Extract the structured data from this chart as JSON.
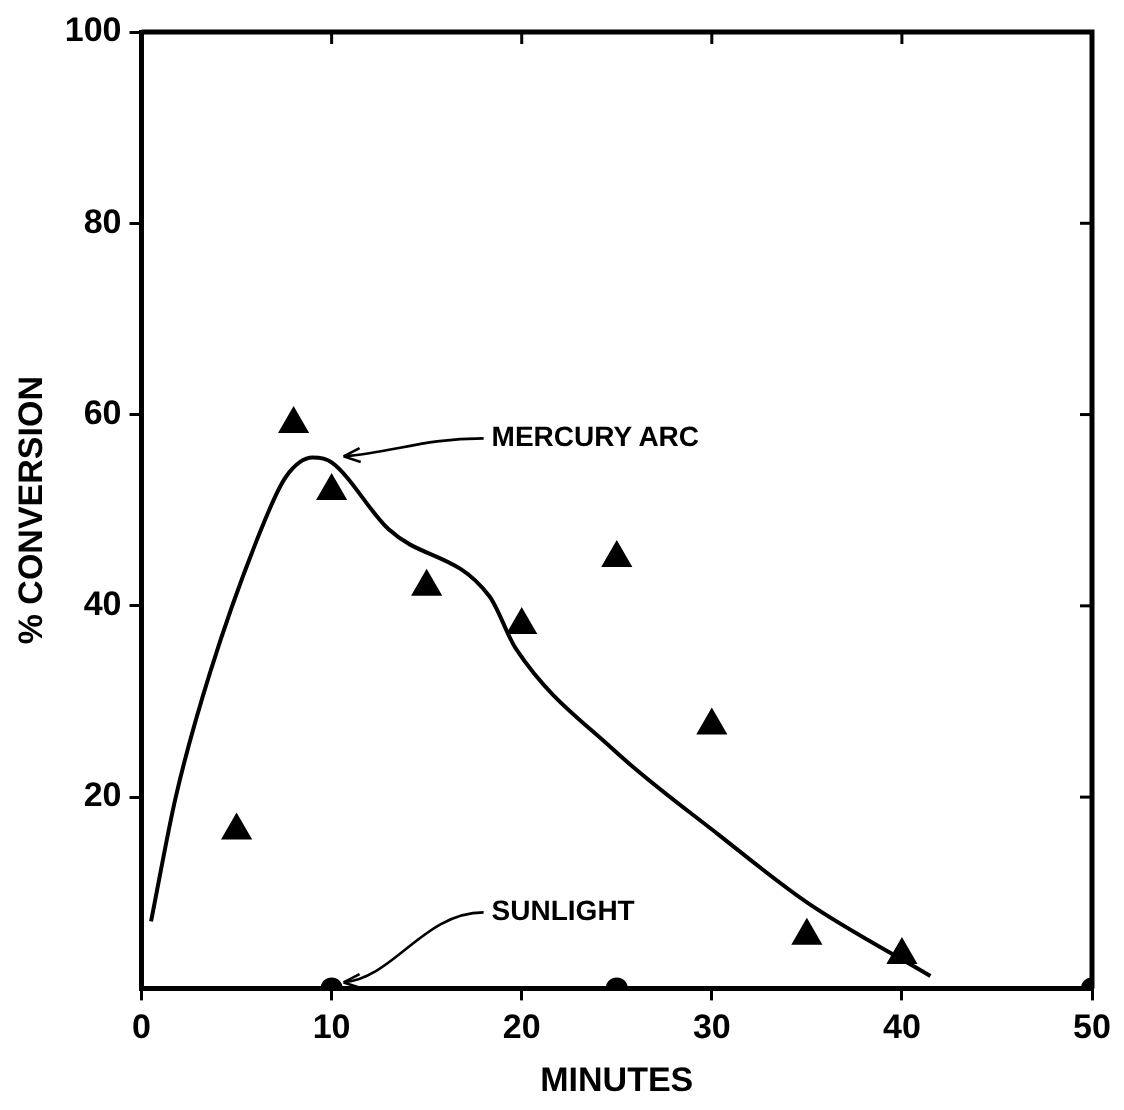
{
  "chart_data": {
    "type": "scatter",
    "xlabel": "MINUTES",
    "ylabel": "% CONVERSION",
    "xlim": [
      0,
      50
    ],
    "xticks": [
      0,
      10,
      20,
      30,
      40,
      50
    ],
    "ylim": [
      0,
      100
    ],
    "yticks": [
      20,
      40,
      60,
      80,
      100
    ],
    "grid": false,
    "legend": false,
    "series": [
      {
        "type": "line",
        "color": "#000000",
        "marker": "none",
        "line_style": "solid",
        "x": [
          0.5,
          1.8,
          3.6,
          6.5,
          7.6,
          9,
          10,
          13,
          18.3,
          19.7,
          24.8,
          30.4,
          35,
          41.5
        ],
        "values": [
          7,
          20,
          33,
          49,
          53.5,
          55.5,
          55,
          48,
          41,
          35.5,
          25,
          16,
          9,
          1.3
        ]
      },
      {
        "type": "scatter",
        "color": "#000000",
        "marker": "triangle",
        "x": [
          5,
          8,
          10,
          15,
          20,
          25,
          30,
          35,
          40
        ],
        "values": [
          16.5,
          59,
          52,
          42,
          38,
          45,
          27.5,
          5.5,
          3.5
        ]
      },
      {
        "type": "scatter",
        "color": "#000000",
        "marker": "circle",
        "x": [
          10,
          25,
          50
        ],
        "values": [
          0,
          0,
          0
        ]
      }
    ],
    "annotations": [
      {
        "text": "MERCURY ARC",
        "x": 10,
        "y": 55
      },
      {
        "text": "SUNLIGHT",
        "x": 10,
        "y": 0
      }
    ]
  }
}
